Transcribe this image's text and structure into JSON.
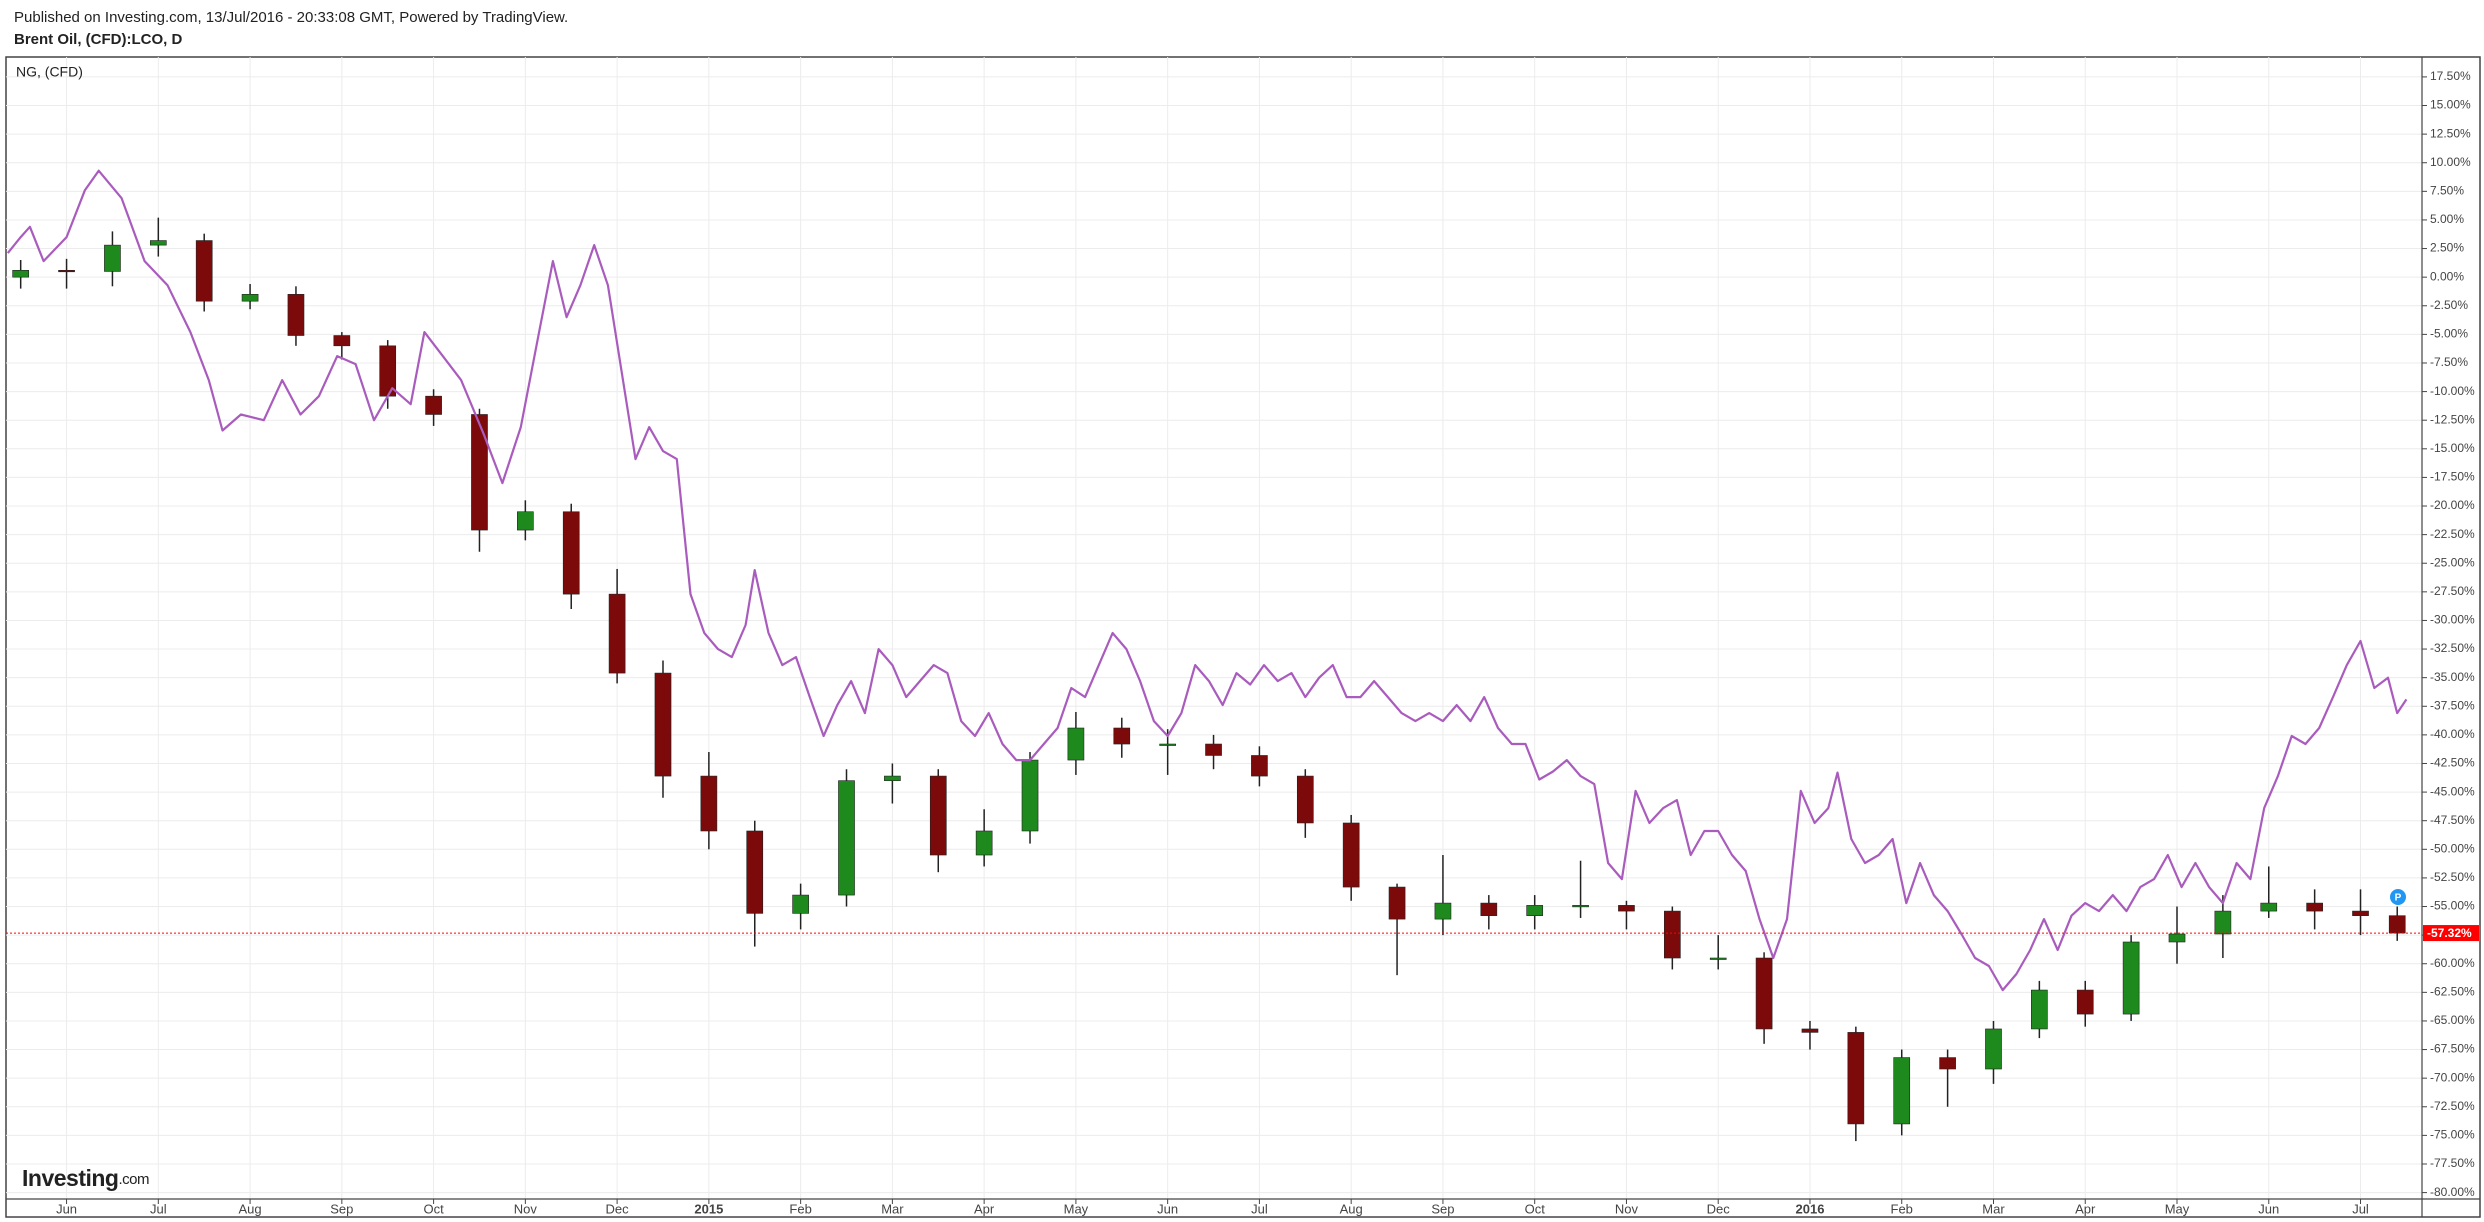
{
  "header": {
    "published": "Published on Investing.com, 13/Jul/2016 - 20:33:08 GMT, Powered by TradingView.",
    "symbol": "Brent Oil, (CFD):LCO, D"
  },
  "chart_data": {
    "type": "candlestick",
    "legend_label": "NG,  (CFD)",
    "badge": "P",
    "logo_main": "Investing",
    "logo_suffix": ".com",
    "xlim": [
      -0.66,
      25.67
    ],
    "ylim": [
      -80.56,
      19.24
    ],
    "grid": true,
    "xticks": [
      {
        "value": 0,
        "label": "Jun"
      },
      {
        "value": 1,
        "label": "Jul"
      },
      {
        "value": 2,
        "label": "Aug"
      },
      {
        "value": 3,
        "label": "Sep"
      },
      {
        "value": 4,
        "label": "Oct"
      },
      {
        "value": 5,
        "label": "Nov"
      },
      {
        "value": 6,
        "label": "Dec"
      },
      {
        "value": 7,
        "label": "2015"
      },
      {
        "value": 8,
        "label": "Feb"
      },
      {
        "value": 9,
        "label": "Mar"
      },
      {
        "value": 10,
        "label": "Apr"
      },
      {
        "value": 11,
        "label": "May"
      },
      {
        "value": 12,
        "label": "Jun"
      },
      {
        "value": 13,
        "label": "Jul"
      },
      {
        "value": 14,
        "label": "Aug"
      },
      {
        "value": 15,
        "label": "Sep"
      },
      {
        "value": 16,
        "label": "Oct"
      },
      {
        "value": 17,
        "label": "Nov"
      },
      {
        "value": 18,
        "label": "Dec"
      },
      {
        "value": 19,
        "label": "2016"
      },
      {
        "value": 20,
        "label": "Feb"
      },
      {
        "value": 21,
        "label": "Mar"
      },
      {
        "value": 22,
        "label": "Apr"
      },
      {
        "value": 23,
        "label": "May"
      },
      {
        "value": 24,
        "label": "Jun"
      },
      {
        "value": 25,
        "label": "Jul"
      }
    ],
    "yticks": [
      {
        "value": 17.5,
        "label": "17.50%"
      },
      {
        "value": 15,
        "label": "15.00%"
      },
      {
        "value": 12.5,
        "label": "12.50%"
      },
      {
        "value": 10,
        "label": "10.00%"
      },
      {
        "value": 7.5,
        "label": "7.50%"
      },
      {
        "value": 5,
        "label": "5.00%"
      },
      {
        "value": 2.5,
        "label": "2.50%"
      },
      {
        "value": 0,
        "label": "0.00%"
      },
      {
        "value": -2.5,
        "label": "-2.50%"
      },
      {
        "value": -5,
        "label": "-5.00%"
      },
      {
        "value": -7.5,
        "label": "-7.50%"
      },
      {
        "value": -10,
        "label": "-10.00%"
      },
      {
        "value": -12.5,
        "label": "-12.50%"
      },
      {
        "value": -15,
        "label": "-15.00%"
      },
      {
        "value": -17.5,
        "label": "-17.50%"
      },
      {
        "value": -20,
        "label": "-20.00%"
      },
      {
        "value": -22.5,
        "label": "-22.50%"
      },
      {
        "value": -25,
        "label": "-25.00%"
      },
      {
        "value": -27.5,
        "label": "-27.50%"
      },
      {
        "value": -30,
        "label": "-30.00%"
      },
      {
        "value": -32.5,
        "label": "-32.50%"
      },
      {
        "value": -35,
        "label": "-35.00%"
      },
      {
        "value": -37.5,
        "label": "-37.50%"
      },
      {
        "value": -40,
        "label": "-40.00%"
      },
      {
        "value": -42.5,
        "label": "-42.50%"
      },
      {
        "value": -45,
        "label": "-45.00%"
      },
      {
        "value": -47.5,
        "label": "-47.50%"
      },
      {
        "value": -50,
        "label": "-50.00%"
      },
      {
        "value": -52.5,
        "label": "-52.50%"
      },
      {
        "value": -55,
        "label": "-55.00%"
      },
      {
        "value": -57.5,
        "label": "-57.50%"
      },
      {
        "value": -60,
        "label": "-60.00%"
      },
      {
        "value": -62.5,
        "label": "-62.50%"
      },
      {
        "value": -65,
        "label": "-65.00%"
      },
      {
        "value": -67.5,
        "label": "-67.50%"
      },
      {
        "value": -70,
        "label": "-70.00%"
      },
      {
        "value": -72.5,
        "label": "-72.50%"
      },
      {
        "value": -75,
        "label": "-75.00%"
      },
      {
        "value": -77.5,
        "label": "-77.50%"
      },
      {
        "value": -80,
        "label": "-80.00%"
      }
    ],
    "last_value": {
      "value": -57.32,
      "label": "-57.32%"
    },
    "last_color": "#ff0000",
    "series": [
      {
        "type": "candlestick",
        "up_color": "#1e8a1e",
        "down_color": "#7d0a0a",
        "wick_color": "#222222",
        "x": [
          -0.5,
          0,
          0.5,
          1,
          1.5,
          2,
          2.5,
          3,
          3.5,
          4,
          4.5,
          5,
          5.5,
          6,
          6.5,
          7,
          7.5,
          8,
          8.5,
          9,
          9.5,
          10,
          10.5,
          11,
          11.5,
          12,
          12.5,
          13,
          13.5,
          14,
          14.5,
          15,
          15.5,
          16,
          16.5,
          17,
          17.5,
          18,
          18.5,
          19,
          19.5,
          20,
          20.5,
          21,
          21.5,
          22,
          22.5,
          23,
          23.5,
          24,
          24.5,
          25,
          25.4
        ],
        "open": [
          0,
          0.6,
          0.5,
          2.8,
          3.2,
          -2.1,
          -1.5,
          -5.1,
          -6.0,
          -10.4,
          -12.0,
          -22.1,
          -20.5,
          -27.7,
          -34.6,
          -43.6,
          -48.4,
          -55.6,
          -54.0,
          -44.0,
          -43.6,
          -50.5,
          -48.4,
          -42.2,
          -39.4,
          -40.8,
          -40.8,
          -41.8,
          -43.6,
          -47.7,
          -53.3,
          -56.1,
          -54.7,
          -55.8,
          -54.9,
          -54.9,
          -55.4,
          -59.5,
          -59.5,
          -65.7,
          -66.0,
          -74.0,
          -68.2,
          -69.2,
          -65.7,
          -62.3,
          -64.4,
          -58.1,
          -57.4,
          -55.4,
          -54.7,
          -55.4,
          -55.8
        ],
        "high": [
          1.5,
          1.6,
          4.0,
          5.2,
          3.8,
          -0.6,
          -0.8,
          -4.8,
          -5.5,
          -9.8,
          -11.5,
          -19.5,
          -19.8,
          -25.5,
          -33.5,
          -41.5,
          -47.5,
          -53.0,
          -43.0,
          -42.5,
          -43.0,
          -46.5,
          -41.5,
          -38.0,
          -38.5,
          -39.5,
          -40.0,
          -41.0,
          -43.0,
          -47.0,
          -53.0,
          -50.5,
          -54.0,
          -54.0,
          -51.0,
          -54.5,
          -55.0,
          -57.5,
          -59.0,
          -65.0,
          -65.5,
          -67.5,
          -67.5,
          -65.0,
          -61.5,
          -61.5,
          -57.5,
          -55.0,
          -54.0,
          -51.5,
          -53.5,
          -53.5,
          -55.0
        ],
        "low": [
          -1.0,
          -1.0,
          -0.8,
          1.8,
          -3.0,
          -2.8,
          -6.0,
          -7.2,
          -11.5,
          -13.0,
          -24.0,
          -23.0,
          -29.0,
          -35.5,
          -45.5,
          -50.0,
          -58.5,
          -57.0,
          -55.0,
          -46.0,
          -52.0,
          -51.5,
          -49.5,
          -43.5,
          -42.0,
          -43.5,
          -43.0,
          -44.5,
          -49.0,
          -54.5,
          -61.0,
          -57.5,
          -57.0,
          -57.0,
          -56.0,
          -57.0,
          -60.5,
          -60.5,
          -67.0,
          -67.5,
          -75.5,
          -75.0,
          -72.5,
          -70.5,
          -66.5,
          -65.5,
          -65.0,
          -60.0,
          -59.5,
          -56.0,
          -57.0,
          -57.5,
          -58.0
        ],
        "close": [
          0.6,
          0.5,
          2.8,
          3.2,
          -2.1,
          -1.5,
          -5.1,
          -6.0,
          -10.4,
          -12.0,
          -22.1,
          -20.5,
          -27.7,
          -34.6,
          -43.6,
          -48.4,
          -55.6,
          -54.0,
          -44.0,
          -43.6,
          -50.5,
          -48.4,
          -42.2,
          -39.4,
          -40.8,
          -40.8,
          -41.8,
          -43.6,
          -47.7,
          -53.3,
          -56.1,
          -54.7,
          -55.8,
          -54.9,
          -54.9,
          -55.4,
          -59.5,
          -59.5,
          -65.7,
          -66.0,
          -74.0,
          -68.2,
          -69.2,
          -65.7,
          -62.3,
          -64.4,
          -58.1,
          -57.4,
          -55.4,
          -54.7,
          -55.4,
          -55.8,
          -57.32
        ]
      },
      {
        "type": "line",
        "color": "#a95cbd",
        "x": [
          -0.64,
          -0.5,
          -0.4,
          -0.25,
          0,
          0.2,
          0.35,
          0.6,
          0.85,
          1.1,
          1.35,
          1.55,
          1.7,
          1.9,
          2.15,
          2.35,
          2.55,
          2.75,
          2.95,
          3.15,
          3.35,
          3.55,
          3.75,
          3.9,
          4.1,
          4.3,
          4.55,
          4.75,
          4.95,
          5.15,
          5.3,
          5.45,
          5.6,
          5.75,
          5.9,
          6.05,
          6.2,
          6.35,
          6.5,
          6.65,
          6.8,
          6.95,
          7.1,
          7.25,
          7.4,
          7.5,
          7.65,
          7.8,
          7.95,
          8.1,
          8.25,
          8.4,
          8.55,
          8.7,
          8.85,
          9.0,
          9.15,
          9.3,
          9.45,
          9.6,
          9.75,
          9.9,
          10.05,
          10.2,
          10.35,
          10.5,
          10.65,
          10.8,
          10.95,
          11.1,
          11.25,
          11.4,
          11.55,
          11.7,
          11.85,
          12.0,
          12.15,
          12.3,
          12.45,
          12.6,
          12.75,
          12.9,
          13.05,
          13.2,
          13.35,
          13.5,
          13.65,
          13.8,
          13.95,
          14.1,
          14.25,
          14.4,
          14.55,
          14.7,
          14.85,
          15.0,
          15.15,
          15.3,
          15.45,
          15.6,
          15.75,
          15.9,
          16.05,
          16.2,
          16.35,
          16.5,
          16.65,
          16.8,
          16.95,
          17.1,
          17.25,
          17.4,
          17.55,
          17.7,
          17.85,
          18.0,
          18.15,
          18.3,
          18.45,
          18.6,
          18.75,
          18.9,
          19.05,
          19.2,
          19.3,
          19.45,
          19.6,
          19.75,
          19.9,
          20.05,
          20.2,
          20.35,
          20.5,
          20.65,
          20.8,
          20.95,
          21.1,
          21.25,
          21.4,
          21.55,
          21.7,
          21.85,
          22.0,
          22.15,
          22.3,
          22.45,
          22.6,
          22.75,
          22.9,
          23.05,
          23.2,
          23.35,
          23.5,
          23.65,
          23.8,
          23.95,
          24.1,
          24.25,
          24.4,
          24.55,
          24.7,
          24.85,
          25.0,
          25.15,
          25.3,
          25.4,
          25.5
        ],
        "values": [
          2.1,
          3.5,
          4.4,
          1.4,
          3.5,
          7.6,
          9.3,
          6.9,
          1.4,
          -0.7,
          -4.8,
          -9.0,
          -13.4,
          -12.0,
          -12.5,
          -9.0,
          -12.0,
          -10.4,
          -6.9,
          -7.6,
          -12.5,
          -9.7,
          -11.1,
          -4.8,
          -6.9,
          -9.0,
          -13.8,
          -18.0,
          -13.1,
          -4.8,
          1.4,
          -3.5,
          -0.7,
          2.8,
          -0.7,
          -8.3,
          -15.9,
          -13.1,
          -15.2,
          -15.9,
          -27.7,
          -31.1,
          -32.5,
          -33.2,
          -30.4,
          -25.6,
          -31.1,
          -33.9,
          -33.2,
          -36.7,
          -40.1,
          -37.4,
          -35.3,
          -38.1,
          -32.5,
          -33.9,
          -36.7,
          -35.3,
          -33.9,
          -34.6,
          -38.8,
          -40.1,
          -38.1,
          -40.8,
          -42.2,
          -42.2,
          -40.8,
          -39.4,
          -35.9,
          -36.7,
          -33.9,
          -31.1,
          -32.5,
          -35.3,
          -38.8,
          -40.1,
          -38.1,
          -33.9,
          -35.3,
          -37.4,
          -34.6,
          -35.6,
          -33.9,
          -35.3,
          -34.6,
          -36.7,
          -35.0,
          -33.9,
          -36.7,
          -36.7,
          -35.3,
          -36.7,
          -38.1,
          -38.8,
          -38.1,
          -38.8,
          -37.4,
          -38.8,
          -36.7,
          -39.4,
          -40.8,
          -40.8,
          -43.9,
          -43.2,
          -42.2,
          -43.6,
          -44.3,
          -51.2,
          -52.6,
          -44.9,
          -47.7,
          -46.4,
          -45.7,
          -50.5,
          -48.4,
          -48.4,
          -50.5,
          -51.9,
          -56.1,
          -59.5,
          -56.1,
          -44.9,
          -47.7,
          -46.4,
          -43.3,
          -49.1,
          -51.2,
          -50.5,
          -49.1,
          -54.7,
          -51.2,
          -54.0,
          -55.4,
          -57.4,
          -59.5,
          -60.2,
          -62.3,
          -60.9,
          -58.8,
          -56.1,
          -58.8,
          -55.8,
          -54.7,
          -55.4,
          -54.0,
          -55.4,
          -53.3,
          -52.6,
          -50.5,
          -53.3,
          -51.2,
          -53.3,
          -54.7,
          -51.2,
          -52.6,
          -46.4,
          -43.6,
          -40.1,
          -40.8,
          -39.4,
          -36.7,
          -33.9,
          -31.8,
          -35.9,
          -35.0,
          -38.1,
          -36.9
        ]
      }
    ]
  }
}
